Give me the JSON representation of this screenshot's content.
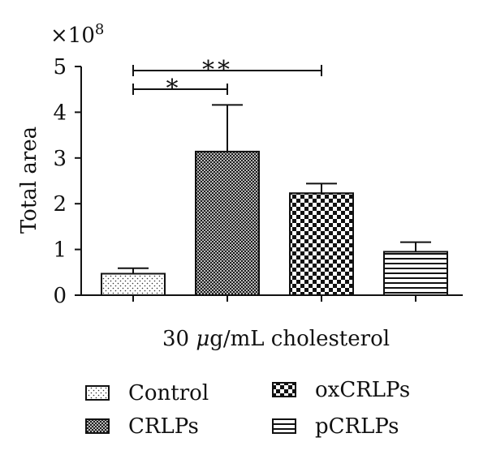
{
  "chart_data": {
    "type": "bar",
    "title": "",
    "xlabel_parts": [
      "30 ",
      "μ",
      "g/mL cholesterol"
    ],
    "ylabel": "Total area",
    "y_multiplier": "×10",
    "y_exponent": "8",
    "ylim": [
      0,
      5
    ],
    "yticks": [
      "0",
      "1",
      "2",
      "3",
      "4",
      "5"
    ],
    "grid": false,
    "legend_position": "bottom",
    "categories": [
      "Control",
      "CRLPs",
      "oxCRLPs",
      "pCRLPs"
    ],
    "values": [
      0.47,
      3.14,
      2.23,
      0.95
    ],
    "errors": [
      0.12,
      1.02,
      0.21,
      0.21
    ],
    "fill_patterns": [
      "dots",
      "crosshatch",
      "checker",
      "horizontal-lines"
    ],
    "significance": [
      {
        "from": "Control",
        "to": "CRLPs",
        "label": "*"
      },
      {
        "from": "Control",
        "to": "oxCRLPs",
        "label": "**"
      }
    ]
  }
}
